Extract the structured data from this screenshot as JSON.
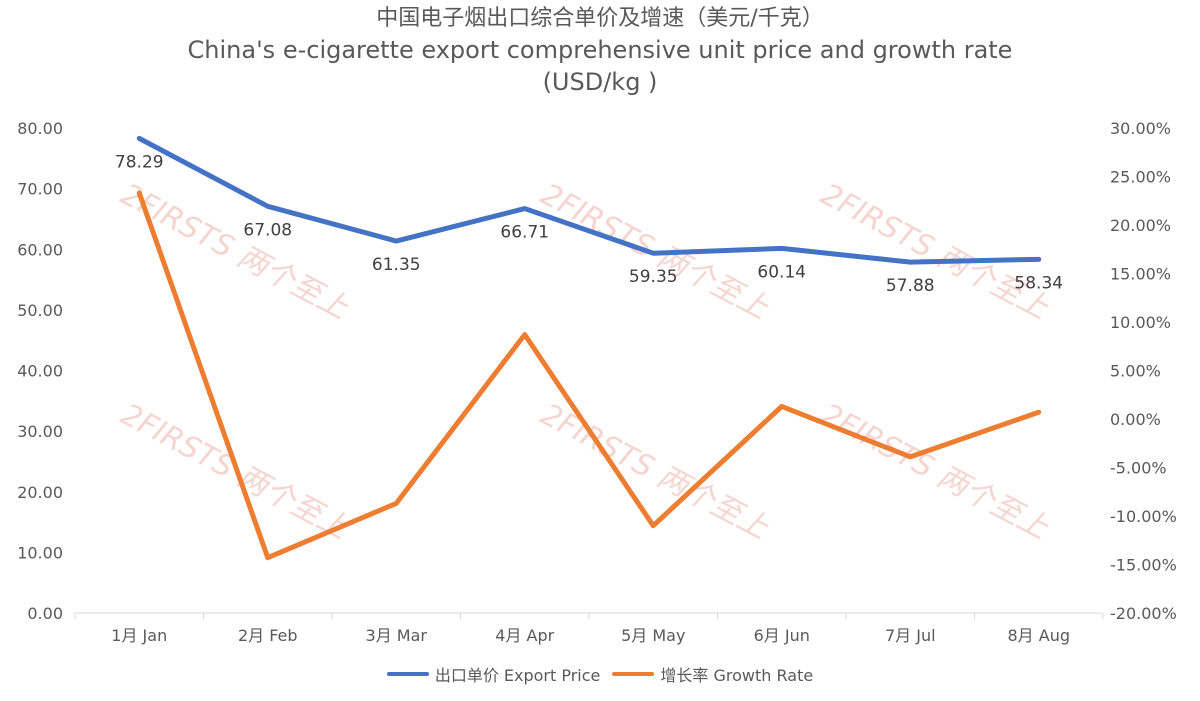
{
  "chart_data": {
    "type": "line",
    "title_zh": "中国电子烟出口综合单价及增速（美元/千克）",
    "title_en": "China's e-cigarette export comprehensive unit price and growth rate",
    "title_unit": "(USD/kg )",
    "categories": [
      "1月 Jan",
      "2月 Feb",
      "3月 Mar",
      "4月 Apr",
      "5月 May",
      "6月 Jun",
      "7月 Jul",
      "8月 Aug"
    ],
    "y_left": {
      "ylim": [
        0,
        80
      ],
      "ticks": [
        "0.00",
        "10.00",
        "20.00",
        "30.00",
        "40.00",
        "50.00",
        "60.00",
        "70.00",
        "80.00"
      ]
    },
    "y_right": {
      "ylim": [
        -20,
        30
      ],
      "ticks": [
        "-20.00%",
        "-15.00%",
        "-10.00%",
        "-5.00%",
        "0.00%",
        "5.00%",
        "10.00%",
        "15.00%",
        "20.00%",
        "25.00%",
        "30.00%"
      ]
    },
    "series": [
      {
        "name": "出口单价 Export Price",
        "axis": "left",
        "color": "#4472C4",
        "values": [
          78.29,
          67.08,
          61.35,
          66.71,
          59.35,
          60.14,
          57.88,
          58.34
        ],
        "labels": [
          "78.29",
          "67.08",
          "61.35",
          "66.71",
          "59.35",
          "60.14",
          "57.88",
          "58.34"
        ]
      },
      {
        "name": "增长率 Growth Rate",
        "axis": "right",
        "color": "#ED7D31",
        "values": [
          23.3,
          -14.3,
          -8.7,
          8.7,
          -11.0,
          1.3,
          -3.9,
          0.7
        ]
      }
    ],
    "grid": false,
    "legend_position": "bottom"
  },
  "watermark": {
    "brand": "2FIRSTS",
    "brand_zh": "两个至上"
  }
}
